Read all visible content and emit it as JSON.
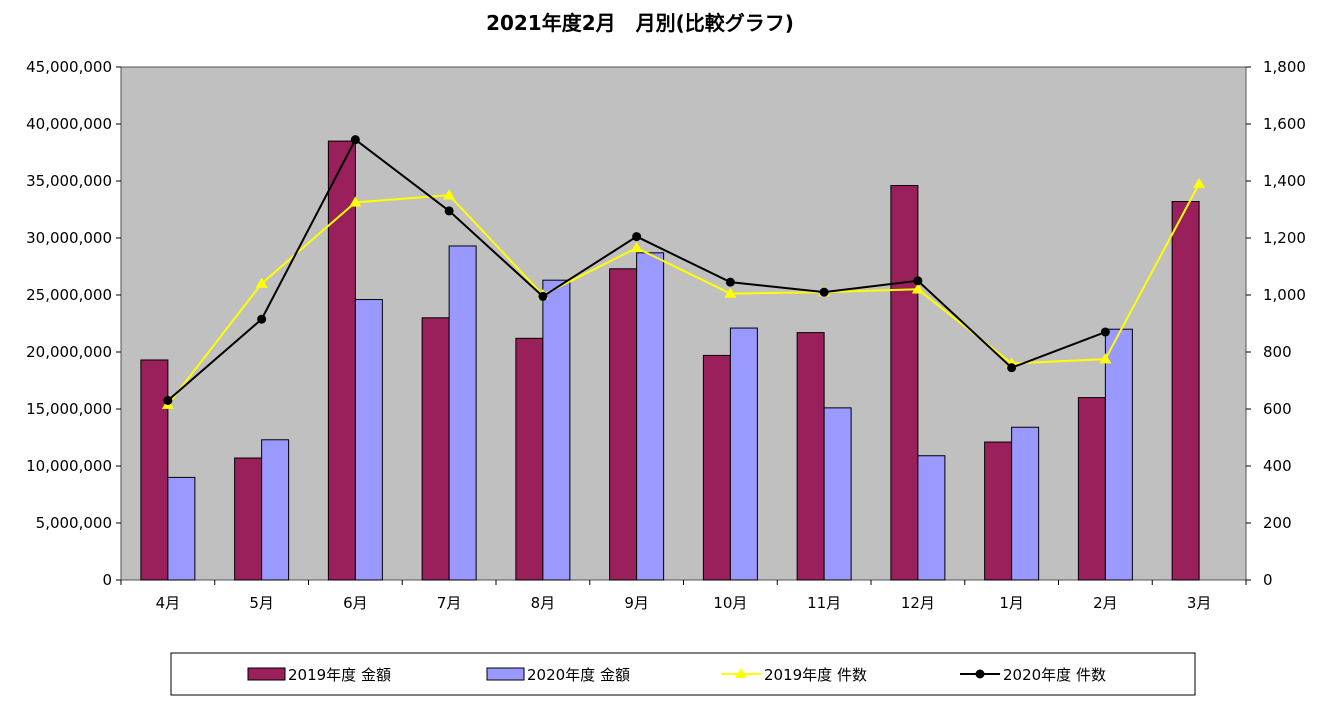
{
  "chart_data": {
    "type": "bar",
    "title": "2021年度2月　月別(比較グラフ)",
    "categories": [
      "4月",
      "5月",
      "6月",
      "7月",
      "8月",
      "9月",
      "10月",
      "11月",
      "12月",
      "1月",
      "2月",
      "3月"
    ],
    "series": [
      {
        "name": "2019年度 金額",
        "type": "bar",
        "axis": "left",
        "color": "#99205a",
        "values": [
          19300000,
          10700000,
          38500000,
          23000000,
          21200000,
          27300000,
          19700000,
          21700000,
          34600000,
          12100000,
          16000000,
          33200000
        ]
      },
      {
        "name": "2020年度 金額",
        "type": "bar",
        "axis": "left",
        "color": "#9999ff",
        "values": [
          9000000,
          12300000,
          24600000,
          29300000,
          26300000,
          28700000,
          22100000,
          15100000,
          10900000,
          13400000,
          22000000,
          null
        ]
      },
      {
        "name": "2019年度 件数",
        "type": "line",
        "axis": "right",
        "color": "#ffff00",
        "marker": "triangle",
        "values": [
          615,
          1040,
          1325,
          1350,
          1000,
          1165,
          1005,
          1010,
          1020,
          760,
          775,
          1390
        ]
      },
      {
        "name": "2020年度 件数",
        "type": "line",
        "axis": "right",
        "color": "#000000",
        "marker": "circle",
        "values": [
          630,
          915,
          1545,
          1295,
          995,
          1205,
          1045,
          1010,
          1050,
          745,
          870,
          null
        ]
      }
    ],
    "y_left": {
      "min": 0,
      "max": 45000000,
      "step": 5000000,
      "tick_labels": [
        "0",
        "5,000,000",
        "10,000,000",
        "15,000,000",
        "20,000,000",
        "25,000,000",
        "30,000,000",
        "35,000,000",
        "40,000,000",
        "45,000,000"
      ]
    },
    "y_right": {
      "min": 0,
      "max": 1800,
      "step": 200,
      "tick_labels": [
        "0",
        "200",
        "400",
        "600",
        "800",
        "1,000",
        "1,200",
        "1,400",
        "1,600",
        "1,800"
      ]
    },
    "plot_background": "#c0c0c0",
    "grid": false,
    "legend_position": "bottom"
  }
}
